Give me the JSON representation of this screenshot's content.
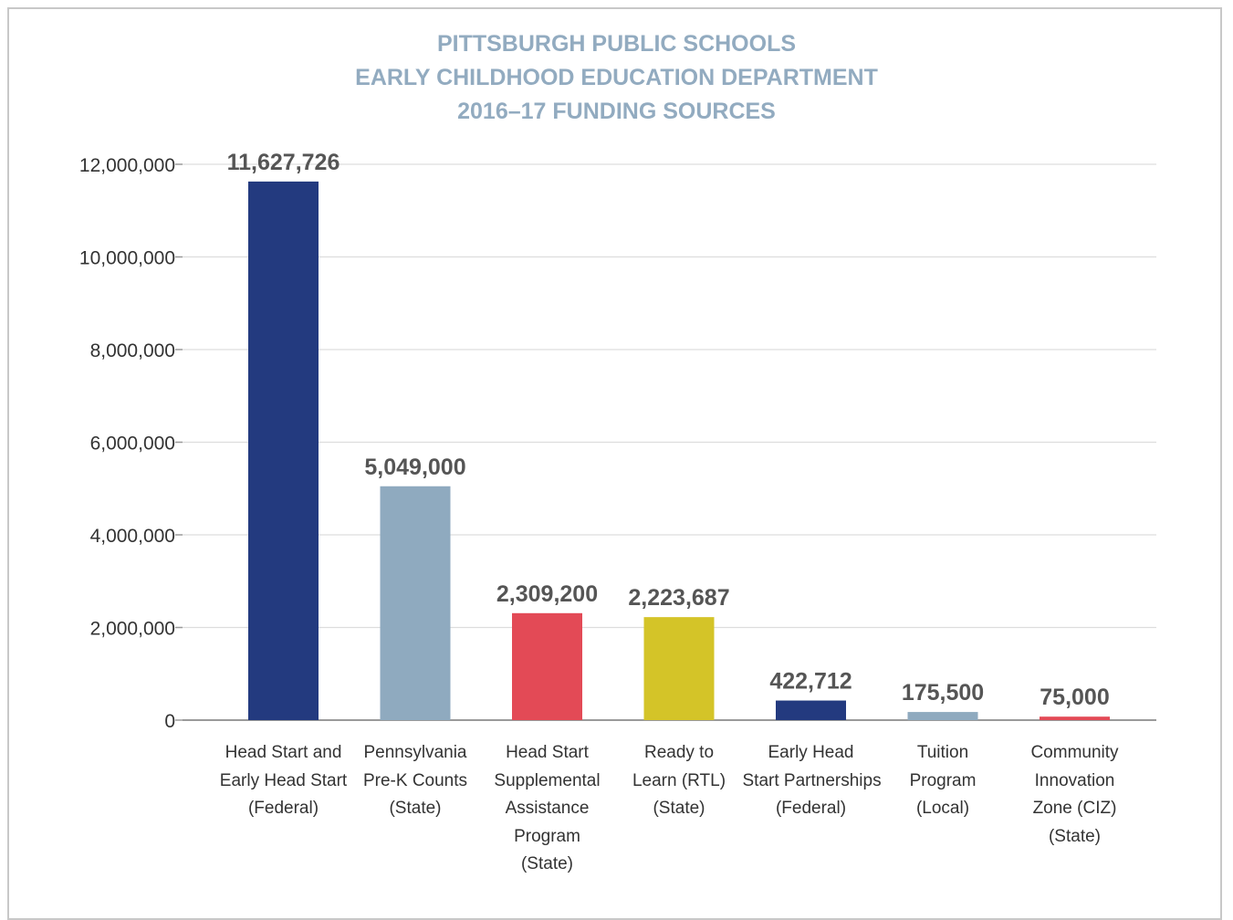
{
  "chart_data": {
    "type": "bar",
    "title": [
      "PITTSBURGH PUBLIC SCHOOLS",
      "EARLY CHILDHOOD EDUCATION DEPARTMENT",
      "2016–17 FUNDING SOURCES"
    ],
    "categories": [
      [
        "Head Start and",
        "Early Head Start",
        "(Federal)"
      ],
      [
        "Pennsylvania",
        "Pre-K Counts",
        "(State)"
      ],
      [
        "Head Start",
        "Supplemental",
        "Assistance",
        "Program",
        "(State)"
      ],
      [
        "Ready to",
        "Learn (RTL)",
        "(State)"
      ],
      [
        "Early Head",
        "Start Partnerships",
        "(Federal)"
      ],
      [
        "Tuition",
        "Program",
        "(Local)"
      ],
      [
        "Community",
        "Innovation",
        "Zone (CIZ)",
        "(State)"
      ]
    ],
    "values": [
      11627726,
      5049000,
      2309200,
      2223687,
      422712,
      175500,
      75000
    ],
    "data_labels": [
      "11,627,726",
      "5,049,000",
      "2,309,200",
      "2,223,687",
      "422,712",
      "175,500",
      "75,000"
    ],
    "colors": [
      "#233a7f",
      "#8faabf",
      "#e34a56",
      "#d4c428",
      "#233a7f",
      "#8faabf",
      "#e34a56"
    ],
    "yticks": [
      0,
      2000000,
      4000000,
      6000000,
      8000000,
      10000000,
      12000000
    ],
    "ytick_labels": [
      "0",
      "2,000,000",
      "4,000,000",
      "6,000,000",
      "8,000,000",
      "10,000,000",
      "12,000,000"
    ],
    "ylim": [
      0,
      12000000
    ],
    "grid": true,
    "xlabel": "",
    "ylabel": ""
  }
}
